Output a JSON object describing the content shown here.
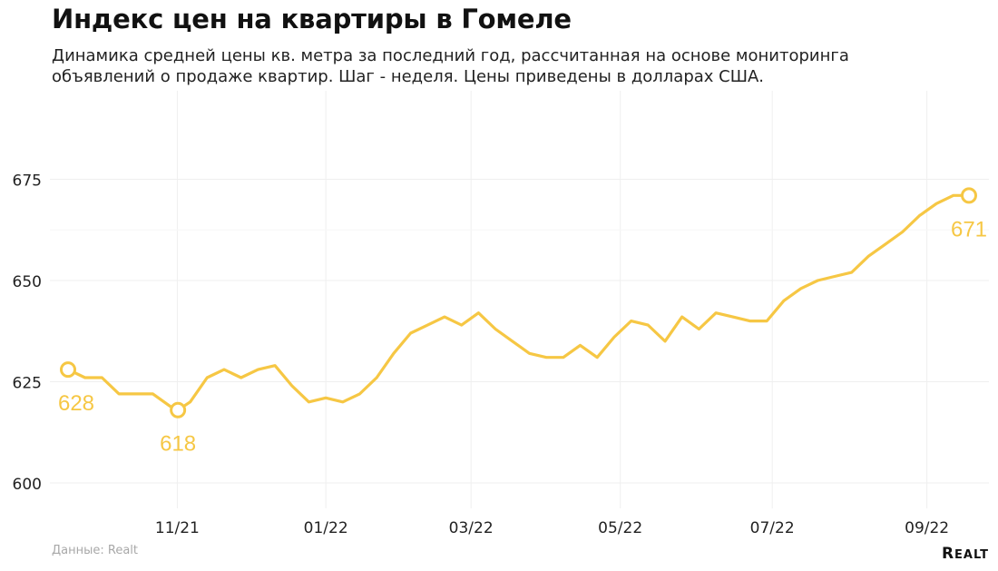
{
  "header": {
    "title": "Индекс цен на квартиры в Гомеле",
    "subtitle_line1": "Динамика средней цены кв. метра за последний год, рассчитанная на основе мониторинга",
    "subtitle_line2": "объявлений о продаже квартир. Шаг - неделя. Цены приведены в долларах США."
  },
  "footer": {
    "source": "Данные: Realt",
    "logo_first": "R",
    "logo_rest": "EALT"
  },
  "chart_data": {
    "type": "line",
    "title": "Индекс цен на квартиры в Гомеле",
    "xlabel": "",
    "ylabel": "",
    "ylim": [
      590,
      685
    ],
    "yticks": [
      600,
      625,
      650,
      675
    ],
    "xticks": [
      {
        "label": "11/21",
        "x": 16.1
      },
      {
        "label": "01/22",
        "x": 38.0
      },
      {
        "label": "03/22",
        "x": 59.4
      },
      {
        "label": "05/22",
        "x": 81.4
      },
      {
        "label": "07/22",
        "x": 103.8
      },
      {
        "label": "09/22",
        "x": 126.6
      }
    ],
    "grid": true,
    "color": "#f6c744",
    "series": [
      {
        "x": [
          0,
          2.5,
          5,
          7.5,
          10,
          12.5,
          15,
          16.2,
          18,
          20.5,
          23,
          25.5,
          28,
          30.5,
          33,
          35.5,
          38,
          40.5,
          43,
          45.5,
          48,
          50.5,
          53,
          55.5,
          58,
          60.5,
          63,
          65.5,
          68,
          70.5,
          73,
          75.5,
          78,
          80.5,
          83,
          85.5,
          88,
          90.5,
          93,
          95.5,
          98,
          100.5,
          103,
          105.5,
          108,
          110.5,
          113,
          115.5,
          118,
          120.5,
          123,
          125.5,
          128,
          130.5,
          132.8
        ],
        "values": [
          628,
          626,
          626,
          622,
          622,
          622,
          619,
          618,
          620,
          626,
          628,
          626,
          628,
          629,
          624,
          620,
          621,
          620,
          622,
          626,
          632,
          637,
          639,
          641,
          639,
          642,
          638,
          635,
          632,
          631,
          631,
          634,
          631,
          636,
          640,
          639,
          635,
          641,
          638,
          642,
          641,
          640,
          640,
          645,
          648,
          650,
          651,
          652,
          656,
          659,
          662,
          666,
          669,
          671,
          671
        ]
      }
    ],
    "annotations": [
      {
        "x": 0,
        "value": 628,
        "label": "628",
        "position": "below"
      },
      {
        "x": 16.2,
        "value": 618,
        "label": "618",
        "position": "below"
      },
      {
        "x": 132.8,
        "value": 671,
        "label": "671",
        "position": "below"
      }
    ]
  }
}
